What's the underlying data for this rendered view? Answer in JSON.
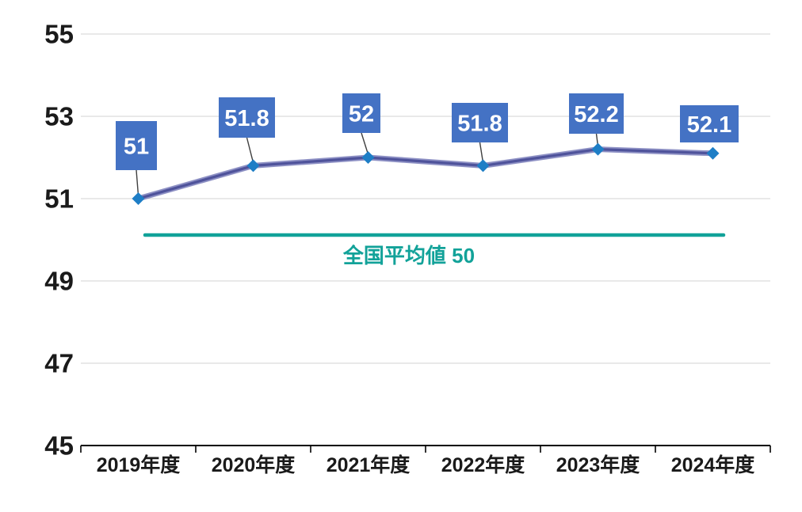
{
  "chart_data": {
    "type": "line",
    "title": "",
    "xlabel": "",
    "ylabel": "",
    "categories": [
      "2019年度",
      "2020年度",
      "2021年度",
      "2022年度",
      "2023年度",
      "2024年度"
    ],
    "series": [
      {
        "values": [
          51,
          51.8,
          52,
          51.8,
          52.2,
          52.1
        ],
        "marker": "diamond",
        "data_labels": [
          "51",
          "51.8",
          "52",
          "51.8",
          "52.2",
          "52.1"
        ]
      }
    ],
    "average_line": {
      "value": 50,
      "label": "全国平均値 50"
    },
    "y_axis": {
      "min": 45,
      "max": 55,
      "ticks": [
        45,
        47,
        49,
        51,
        53,
        55
      ],
      "tick_labels": [
        "45",
        "47",
        "49",
        "51",
        "53",
        "55"
      ]
    },
    "grid": true,
    "legend": "none",
    "colors": {
      "series_line_core": "#4F539B",
      "series_line_edge": "#8D90C4",
      "marker": "#1E7EC6",
      "data_label_box": "#4472C4",
      "data_label_text": "#FFFFFF",
      "average_line": "#12A299",
      "average_label": "#12A299",
      "gridline": "#DCDCDC",
      "axis_line": "#000000",
      "tick_label": "#1A1A1A",
      "leader_line": "#3F3F3F",
      "background": "#FFFFFF"
    }
  }
}
